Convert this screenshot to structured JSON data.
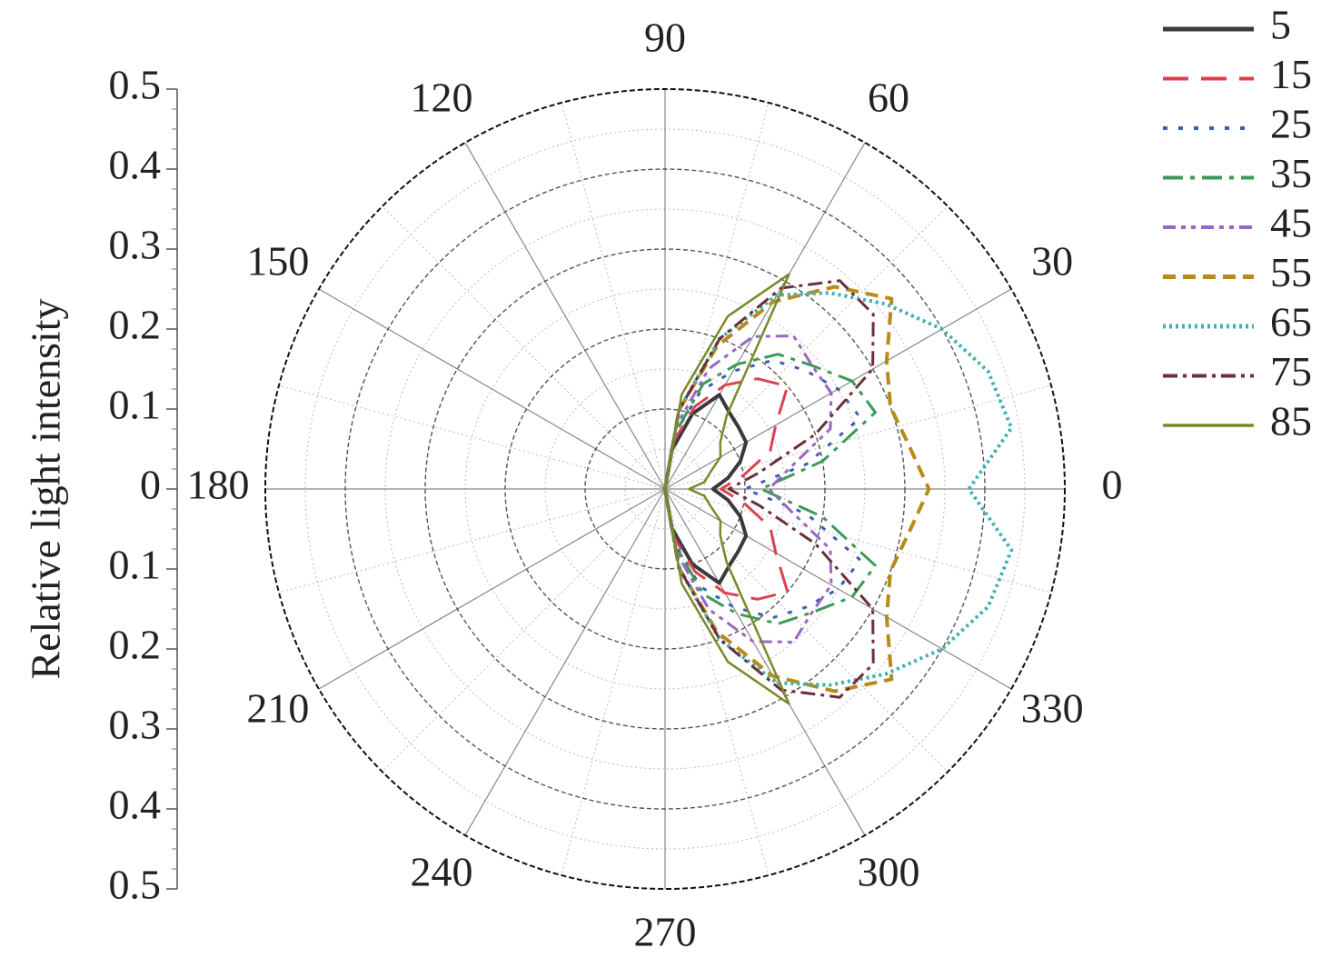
{
  "chart_data": {
    "type": "polar",
    "ylabel": "Relative light intensity",
    "theta": [
      -90,
      -80,
      -70,
      -60,
      -50,
      -40,
      -30,
      -20,
      -10,
      0,
      10,
      20,
      30,
      40,
      50,
      60,
      70,
      80,
      90
    ],
    "series": [
      {
        "name": "5",
        "color": "#3a3a3e",
        "values": [
          0,
          0.05,
          0.1,
          0.136,
          0.125,
          0.12,
          0.117,
          0.1,
          0.08,
          0.06,
          0.08,
          0.1,
          0.117,
          0.12,
          0.125,
          0.136,
          0.1,
          0.05,
          0
        ]
      },
      {
        "name": "15",
        "color": "#d9434f",
        "values": [
          0,
          0.06,
          0.11,
          0.15,
          0.18,
          0.2,
          0.16,
          0.14,
          0.1,
          0.07,
          0.1,
          0.14,
          0.16,
          0.2,
          0.18,
          0.15,
          0.11,
          0.06,
          0
        ]
      },
      {
        "name": "25",
        "color": "#3b5fb0",
        "values": [
          0,
          0.07,
          0.13,
          0.17,
          0.21,
          0.23,
          0.25,
          0.26,
          0.18,
          0.1,
          0.18,
          0.26,
          0.25,
          0.23,
          0.21,
          0.17,
          0.13,
          0.07,
          0
        ]
      },
      {
        "name": "35",
        "color": "#3b9a5a",
        "values": [
          0,
          0.07,
          0.14,
          0.18,
          0.22,
          0.24,
          0.27,
          0.28,
          0.2,
          0.12,
          0.2,
          0.28,
          0.27,
          0.24,
          0.22,
          0.18,
          0.14,
          0.07,
          0
        ]
      },
      {
        "name": "45",
        "color": "#9a66c4",
        "values": [
          0,
          0.08,
          0.16,
          0.22,
          0.25,
          0.24,
          0.24,
          0.22,
          0.16,
          0.13,
          0.16,
          0.22,
          0.24,
          0.24,
          0.25,
          0.22,
          0.16,
          0.08,
          0
        ]
      },
      {
        "name": "55",
        "color": "#b88a1a",
        "values": [
          0,
          0.1,
          0.19,
          0.27,
          0.33,
          0.37,
          0.32,
          0.3,
          0.31,
          0.33,
          0.31,
          0.3,
          0.32,
          0.37,
          0.33,
          0.27,
          0.19,
          0.1,
          0
        ]
      },
      {
        "name": "65",
        "color": "#3fb0b0",
        "values": [
          0,
          0.1,
          0.2,
          0.28,
          0.32,
          0.36,
          0.4,
          0.43,
          0.44,
          0.38,
          0.44,
          0.43,
          0.4,
          0.36,
          0.32,
          0.28,
          0.2,
          0.1,
          0
        ]
      },
      {
        "name": "75",
        "color": "#6b2f3a",
        "values": [
          0,
          0.1,
          0.2,
          0.29,
          0.34,
          0.34,
          0.3,
          0.2,
          0.12,
          0.08,
          0.12,
          0.2,
          0.3,
          0.34,
          0.34,
          0.29,
          0.2,
          0.1,
          0
        ]
      },
      {
        "name": "85",
        "color": "#7a8a28",
        "values": [
          0,
          0.12,
          0.23,
          0.31,
          0.12,
          0.09,
          0.08,
          0.06,
          0.05,
          0.03,
          0.05,
          0.06,
          0.08,
          0.09,
          0.12,
          0.31,
          0.23,
          0.12,
          0
        ]
      }
    ],
    "rlim": [
      0,
      0.5
    ],
    "rticks": [
      0.1,
      0.2,
      0.3,
      0.4,
      0.5
    ],
    "thetaticks": [
      0,
      30,
      60,
      90,
      120,
      150,
      180,
      210,
      240,
      270,
      300,
      330
    ],
    "ylim": [
      -0.5,
      0.5
    ],
    "yticks": [
      {
        "value": -0.5,
        "label": "0.5"
      },
      {
        "value": -0.4,
        "label": "0.4"
      },
      {
        "value": -0.3,
        "label": "0.3"
      },
      {
        "value": -0.2,
        "label": "0.2"
      },
      {
        "value": -0.1,
        "label": "0.1"
      },
      0,
      0.1,
      0.2,
      0.3,
      0.4,
      0.5
    ],
    "grid": true,
    "legend": "right"
  }
}
